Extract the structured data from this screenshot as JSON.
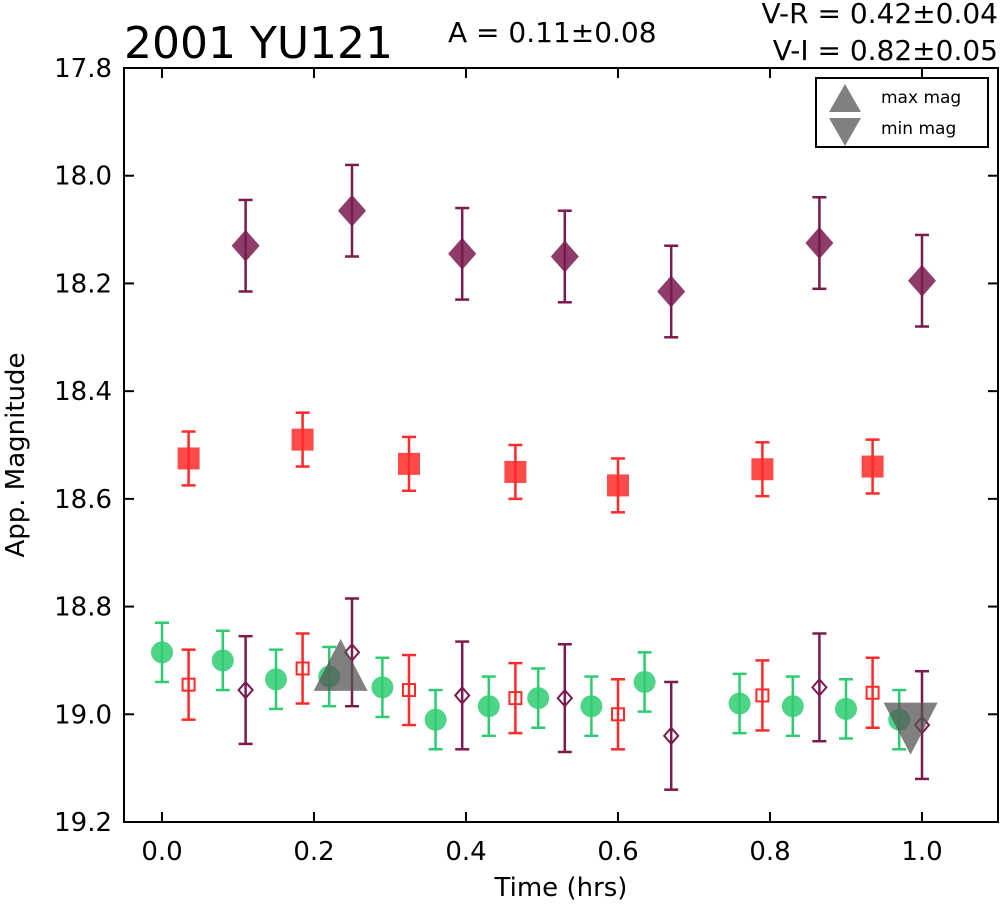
{
  "header": {
    "object_name": "2001 YU121",
    "amplitude": "A  = 0.11±0.08",
    "color_vr": "V-R = 0.42±0.04",
    "color_vi": "V-I  = 0.82±0.05"
  },
  "legend": {
    "max_label": "max mag",
    "min_label": "min mag"
  },
  "chart_data": {
    "type": "scatter",
    "title": "2001 YU121",
    "xlabel": "Time (hrs)",
    "ylabel": "App. Magnitude",
    "xlim": [
      -0.05,
      1.1
    ],
    "ylim": [
      19.2,
      17.8
    ],
    "y_inverted": true,
    "x_ticks": [
      0.0,
      0.2,
      0.4,
      0.6,
      0.8,
      1.0
    ],
    "x_tick_labels": [
      "0.0",
      "0.2",
      "0.4",
      "0.6",
      "0.8",
      "1.0"
    ],
    "y_ticks": [
      17.8,
      18.0,
      18.2,
      18.4,
      18.6,
      18.8,
      19.0,
      19.2
    ],
    "y_tick_labels": [
      "17.8",
      "18.0",
      "18.2",
      "18.4",
      "18.6",
      "18.8",
      "19.0",
      "19.2"
    ],
    "grid": false,
    "legend_position": "top-right",
    "colors": {
      "green": "#2ecc71",
      "red": "#ff2a2a",
      "purple": "#7a1a4f",
      "gray": "#555555"
    },
    "series": [
      {
        "key": "green_circles",
        "marker": "circle",
        "filled": true,
        "color": "#2ecc71",
        "points": [
          {
            "x": 0.0,
            "y": 18.885,
            "err": 0.055
          },
          {
            "x": 0.08,
            "y": 18.9,
            "err": 0.055
          },
          {
            "x": 0.15,
            "y": 18.935,
            "err": 0.055
          },
          {
            "x": 0.22,
            "y": 18.93,
            "err": 0.055
          },
          {
            "x": 0.29,
            "y": 18.95,
            "err": 0.055
          },
          {
            "x": 0.36,
            "y": 19.01,
            "err": 0.055
          },
          {
            "x": 0.43,
            "y": 18.985,
            "err": 0.055
          },
          {
            "x": 0.495,
            "y": 18.97,
            "err": 0.055
          },
          {
            "x": 0.565,
            "y": 18.985,
            "err": 0.055
          },
          {
            "x": 0.635,
            "y": 18.94,
            "err": 0.055
          },
          {
            "x": 0.76,
            "y": 18.98,
            "err": 0.055
          },
          {
            "x": 0.83,
            "y": 18.985,
            "err": 0.055
          },
          {
            "x": 0.9,
            "y": 18.99,
            "err": 0.055
          },
          {
            "x": 0.97,
            "y": 19.01,
            "err": 0.055
          }
        ]
      },
      {
        "key": "red_squares",
        "marker": "square",
        "filled": true,
        "color": "#ff2a2a",
        "points": [
          {
            "x": 0.035,
            "y": 18.525,
            "err": 0.05
          },
          {
            "x": 0.185,
            "y": 18.49,
            "err": 0.05
          },
          {
            "x": 0.325,
            "y": 18.535,
            "err": 0.05
          },
          {
            "x": 0.465,
            "y": 18.55,
            "err": 0.05
          },
          {
            "x": 0.6,
            "y": 18.575,
            "err": 0.05
          },
          {
            "x": 0.79,
            "y": 18.545,
            "err": 0.05
          },
          {
            "x": 0.935,
            "y": 18.54,
            "err": 0.05
          }
        ]
      },
      {
        "key": "red_open_squares",
        "marker": "square",
        "filled": false,
        "color": "#ff2a2a",
        "points": [
          {
            "x": 0.035,
            "y": 18.945,
            "err": 0.065
          },
          {
            "x": 0.185,
            "y": 18.915,
            "err": 0.065
          },
          {
            "x": 0.325,
            "y": 18.955,
            "err": 0.065
          },
          {
            "x": 0.465,
            "y": 18.97,
            "err": 0.065
          },
          {
            "x": 0.6,
            "y": 19.0,
            "err": 0.065
          },
          {
            "x": 0.79,
            "y": 18.965,
            "err": 0.065
          },
          {
            "x": 0.935,
            "y": 18.96,
            "err": 0.065
          }
        ]
      },
      {
        "key": "purple_diamonds",
        "marker": "diamond",
        "filled": true,
        "color": "#7a1a4f",
        "points": [
          {
            "x": 0.11,
            "y": 18.13,
            "err": 0.085
          },
          {
            "x": 0.25,
            "y": 18.065,
            "err": 0.085
          },
          {
            "x": 0.395,
            "y": 18.145,
            "err": 0.085
          },
          {
            "x": 0.53,
            "y": 18.15,
            "err": 0.085
          },
          {
            "x": 0.67,
            "y": 18.215,
            "err": 0.085
          },
          {
            "x": 0.865,
            "y": 18.125,
            "err": 0.085
          },
          {
            "x": 1.0,
            "y": 18.195,
            "err": 0.085
          }
        ]
      },
      {
        "key": "purple_open_diamonds",
        "marker": "diamond",
        "filled": false,
        "color": "#7a1a4f",
        "points": [
          {
            "x": 0.11,
            "y": 18.955,
            "err": 0.1
          },
          {
            "x": 0.25,
            "y": 18.885,
            "err": 0.1
          },
          {
            "x": 0.395,
            "y": 18.965,
            "err": 0.1
          },
          {
            "x": 0.53,
            "y": 18.97,
            "err": 0.1
          },
          {
            "x": 0.67,
            "y": 19.04,
            "err": 0.1
          },
          {
            "x": 0.865,
            "y": 18.95,
            "err": 0.1
          },
          {
            "x": 1.0,
            "y": 19.02,
            "err": 0.1
          }
        ]
      }
    ],
    "extrema": {
      "max_mag": {
        "x": 0.235,
        "y": 18.925
      },
      "min_mag": {
        "x": 0.985,
        "y": 19.01
      }
    }
  }
}
